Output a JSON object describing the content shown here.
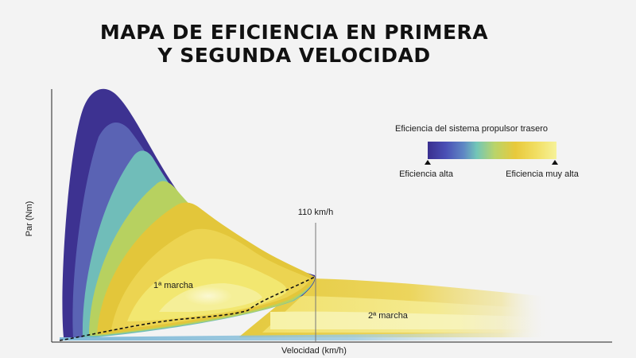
{
  "title": {
    "line1": "MAPA DE EFICIENCIA EN PRIMERA",
    "line2": "Y SEGUNDA VELOCIDAD"
  },
  "axes": {
    "y_label": "Par (Nm)",
    "x_label": "Velocidad (km/h)"
  },
  "marker": {
    "label": "110 km/h"
  },
  "regions": {
    "first_gear": "1ª marcha",
    "second_gear": "2ª marcha"
  },
  "legend": {
    "title": "Eficiencia del sistema propulsor trasero",
    "low_label": "Eficiencia alta",
    "high_label": "Eficiencia muy alta",
    "gradient_colors": [
      "#3a2f8f",
      "#4a4fb5",
      "#5f88c4",
      "#72c6b8",
      "#b9d46a",
      "#e8c93c",
      "#f1de62",
      "#f6f29a"
    ]
  },
  "colors": {
    "purple": "#3d3291",
    "blue": "#5a63b4",
    "teal": "#70bdb9",
    "green": "#b7d160",
    "yellow": "#e3c63a",
    "light_yellow": "#f2e770"
  }
}
